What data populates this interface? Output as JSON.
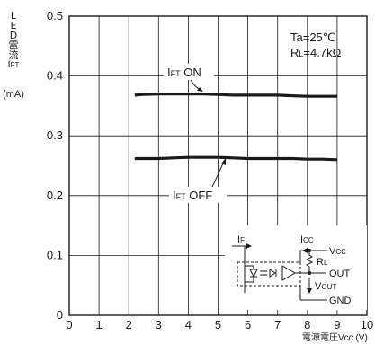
{
  "chart_data": {
    "type": "line",
    "ylabel_chars": [
      "L",
      "E",
      "D",
      "電",
      "流"
    ],
    "ylabel_symbol": {
      "main": "I",
      "sub": "FT"
    },
    "ylabel_unit": "(mA)",
    "xlabel": "電源電圧Vcc (V)",
    "xlim": [
      0,
      10
    ],
    "ylim": [
      0,
      0.5
    ],
    "x_ticks": [
      "0",
      "1",
      "2",
      "3",
      "4",
      "5",
      "6",
      "7",
      "8",
      "9",
      "10"
    ],
    "y_ticks": [
      "0",
      "0.1",
      "0.2",
      "0.3",
      "0.4",
      "0.5"
    ],
    "grid": true,
    "conditions": {
      "ta": {
        "label": "Ta",
        "value": "=25℃"
      },
      "rl": {
        "label": "R",
        "sub": "L",
        "value": "=4.7kΩ"
      }
    },
    "series": [
      {
        "name": "IFT ON",
        "label_main": "I",
        "label_sub": "FT",
        "label_tail": " ON",
        "x": [
          2.2,
          2.5,
          3,
          3.5,
          4,
          4.5,
          5,
          5.5,
          6,
          6.5,
          7,
          7.5,
          8,
          8.5,
          9
        ],
        "values": [
          0.368,
          0.369,
          0.37,
          0.37,
          0.37,
          0.37,
          0.369,
          0.368,
          0.368,
          0.368,
          0.368,
          0.367,
          0.366,
          0.366,
          0.366
        ]
      },
      {
        "name": "IFT OFF",
        "label_main": "I",
        "label_sub": "FT",
        "label_tail": " OFF",
        "x": [
          2.2,
          2.5,
          3,
          3.5,
          4,
          4.5,
          5,
          5.5,
          6,
          6.5,
          7,
          7.5,
          8,
          8.5,
          9
        ],
        "values": [
          0.262,
          0.262,
          0.262,
          0.263,
          0.264,
          0.264,
          0.264,
          0.263,
          0.262,
          0.262,
          0.262,
          0.262,
          0.261,
          0.261,
          0.26
        ]
      }
    ],
    "circuit": {
      "if_label": {
        "main": "I",
        "sub": "F"
      },
      "icc_label": {
        "main": "I",
        "sub": "CC"
      },
      "vcc_label": {
        "main": "V",
        "sub": "CC"
      },
      "rl_label": {
        "main": "R",
        "sub": "L"
      },
      "out_label": "OUT",
      "vout_label": {
        "main": "V",
        "sub": "OUT"
      },
      "gnd_label": "GND"
    }
  }
}
